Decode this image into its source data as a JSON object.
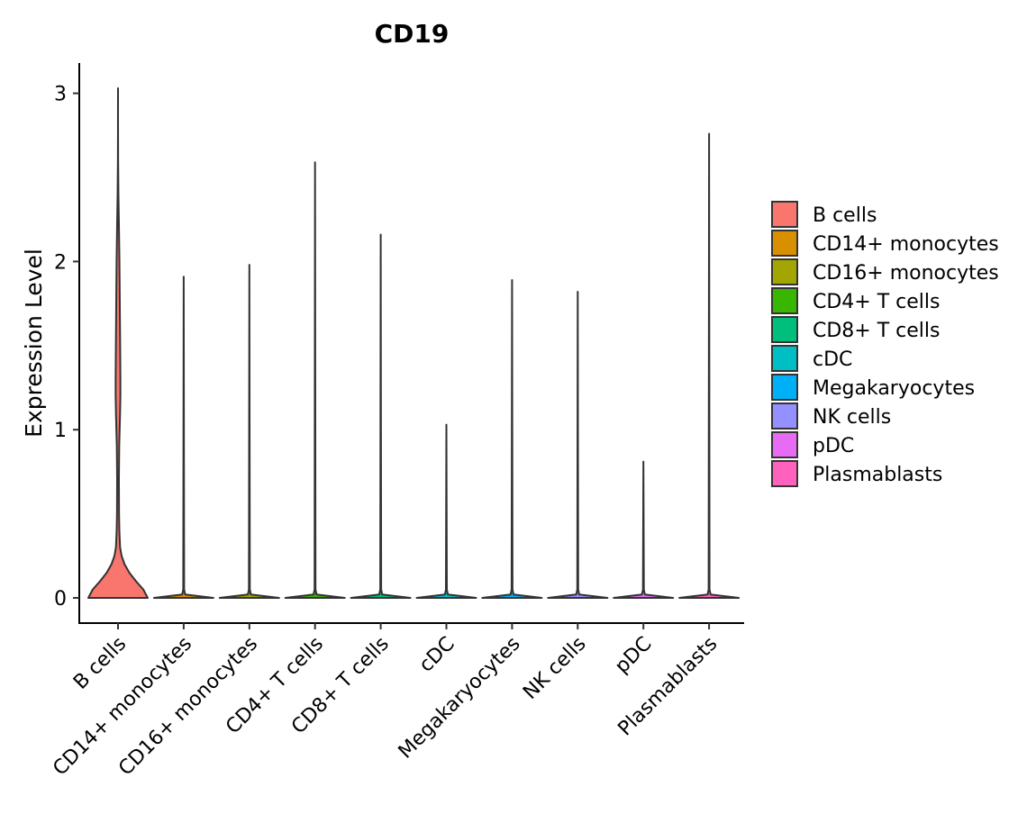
{
  "chart_data": {
    "type": "violin",
    "title": "CD19",
    "xlabel": "",
    "ylabel": "Expression Level",
    "ylim": [
      -0.15,
      3.18
    ],
    "yticks": [
      0,
      1,
      2,
      3
    ],
    "ytick_labels": [
      "0",
      "1",
      "2",
      "3"
    ],
    "grid": false,
    "legend_position": "right",
    "categories": [
      "B cells",
      "CD14+ monocytes",
      "CD16+ monocytes",
      "CD4+ T cells",
      "CD8+ T cells",
      "cDC",
      "Megakaryocytes",
      "NK cells",
      "pDC",
      "Plasmablasts"
    ],
    "colors": [
      "#F8766D",
      "#D89000",
      "#A3A500",
      "#39B600",
      "#00BF7D",
      "#00BFC4",
      "#00B0F6",
      "#9590FF",
      "#E76BF3",
      "#FF62BC"
    ],
    "series": [
      {
        "name": "B cells",
        "max": 3.03,
        "density": [
          [
            0.0,
            1.0
          ],
          [
            0.05,
            0.85
          ],
          [
            0.1,
            0.6
          ],
          [
            0.15,
            0.38
          ],
          [
            0.2,
            0.22
          ],
          [
            0.25,
            0.12
          ],
          [
            0.3,
            0.07
          ],
          [
            0.4,
            0.045
          ],
          [
            0.5,
            0.035
          ],
          [
            0.7,
            0.03
          ],
          [
            0.9,
            0.04
          ],
          [
            1.0,
            0.055
          ],
          [
            1.1,
            0.07
          ],
          [
            1.2,
            0.08
          ],
          [
            1.3,
            0.08
          ],
          [
            1.5,
            0.072
          ],
          [
            1.8,
            0.058
          ],
          [
            2.0,
            0.048
          ],
          [
            2.2,
            0.032
          ],
          [
            2.4,
            0.014
          ],
          [
            2.6,
            0.004
          ],
          [
            2.8,
            0.001
          ],
          [
            3.03,
            0.0
          ]
        ]
      },
      {
        "name": "CD14+ monocytes",
        "max": 1.91,
        "density": [
          [
            0.0,
            1.0
          ],
          [
            0.02,
            0.05
          ],
          [
            0.05,
            0.015
          ],
          [
            1.91,
            0.0
          ]
        ]
      },
      {
        "name": "CD16+ monocytes",
        "max": 1.98,
        "density": [
          [
            0.0,
            1.0
          ],
          [
            0.02,
            0.05
          ],
          [
            0.05,
            0.015
          ],
          [
            1.98,
            0.0
          ]
        ]
      },
      {
        "name": "CD4+ T cells",
        "max": 2.59,
        "density": [
          [
            0.0,
            1.0
          ],
          [
            0.02,
            0.05
          ],
          [
            0.05,
            0.015
          ],
          [
            2.59,
            0.0
          ]
        ]
      },
      {
        "name": "CD8+ T cells",
        "max": 2.16,
        "density": [
          [
            0.0,
            1.0
          ],
          [
            0.02,
            0.05
          ],
          [
            0.05,
            0.015
          ],
          [
            2.16,
            0.0
          ]
        ]
      },
      {
        "name": "cDC",
        "max": 1.03,
        "density": [
          [
            0.0,
            1.0
          ],
          [
            0.02,
            0.05
          ],
          [
            0.05,
            0.015
          ],
          [
            1.03,
            0.0
          ]
        ]
      },
      {
        "name": "Megakaryocytes",
        "max": 1.89,
        "density": [
          [
            0.0,
            1.0
          ],
          [
            0.02,
            0.05
          ],
          [
            0.05,
            0.015
          ],
          [
            1.89,
            0.0
          ]
        ]
      },
      {
        "name": "NK cells",
        "max": 1.82,
        "density": [
          [
            0.0,
            1.0
          ],
          [
            0.02,
            0.05
          ],
          [
            0.05,
            0.015
          ],
          [
            1.82,
            0.0
          ]
        ]
      },
      {
        "name": "pDC",
        "max": 0.81,
        "density": [
          [
            0.0,
            1.0
          ],
          [
            0.02,
            0.05
          ],
          [
            0.05,
            0.015
          ],
          [
            0.81,
            0.0
          ]
        ]
      },
      {
        "name": "Plasmablasts",
        "max": 2.76,
        "density": [
          [
            0.0,
            1.0
          ],
          [
            0.02,
            0.05
          ],
          [
            0.05,
            0.015
          ],
          [
            2.76,
            0.0
          ]
        ]
      }
    ]
  }
}
